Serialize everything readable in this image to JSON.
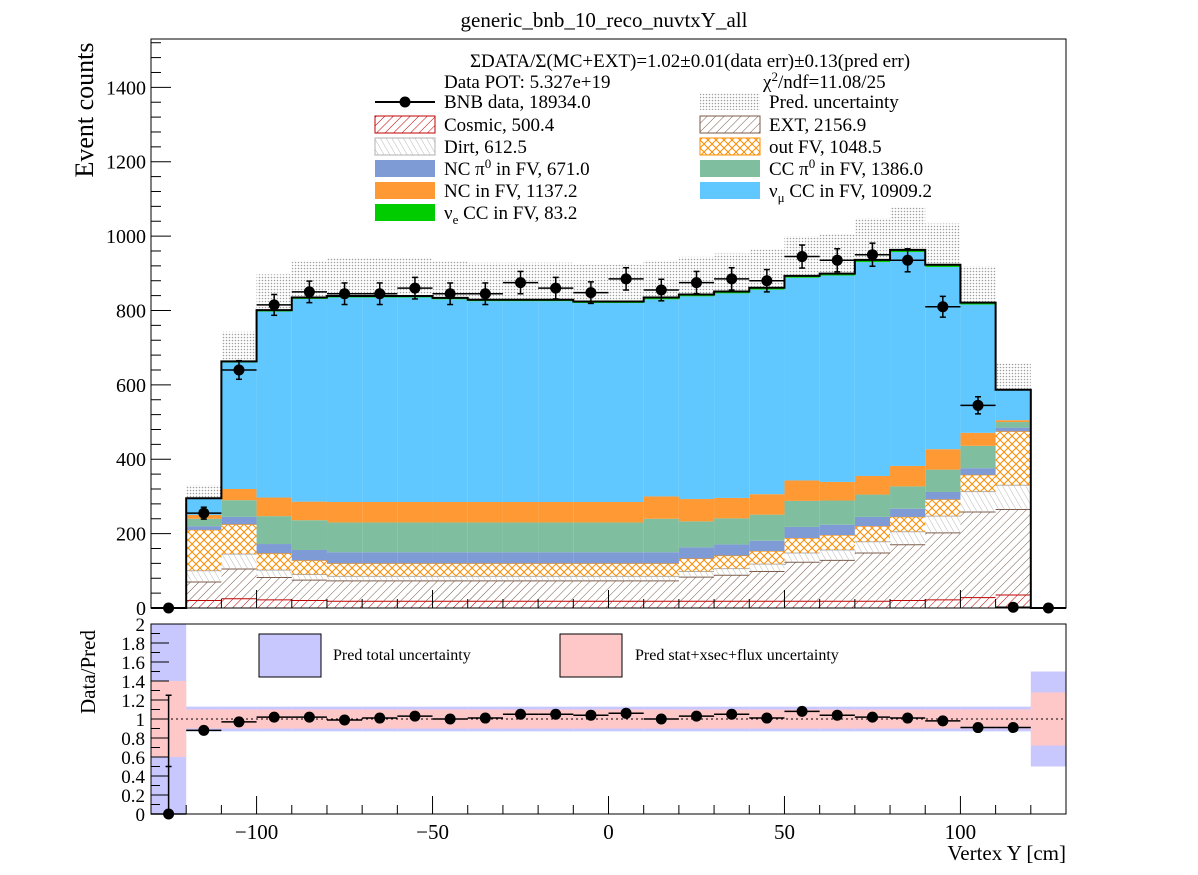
{
  "chart_data": [
    {
      "type": "bar",
      "stacked": true,
      "title": "generic_bnb_10_reco_nuvtxY_all",
      "ylabel": "Event counts",
      "xlim": [
        -130,
        130
      ],
      "ylim": [
        0,
        1530
      ],
      "yticks": [
        0,
        200,
        400,
        600,
        800,
        1000,
        1200,
        1400
      ],
      "bin_width": 10,
      "bin_centers": [
        -125,
        -115,
        -105,
        -95,
        -85,
        -75,
        -65,
        -55,
        -45,
        -35,
        -25,
        -15,
        -5,
        5,
        15,
        25,
        35,
        45,
        55,
        65,
        75,
        85,
        95,
        105,
        115,
        125
      ],
      "header_lines": {
        "ratio": "ΣDATA/Σ(MC+EXT)=1.02±0.01(data err)±0.13(pred err)",
        "pot": "Data POT: 5.327e+19",
        "chi2_prefix": "χ",
        "chi2_sup": "2",
        "chi2_rest": "/ndf=11.08/25"
      },
      "series": [
        {
          "name": "Cosmic, 500.4",
          "color": "#c00000",
          "pattern": "hatch-red",
          "values": [
            0,
            20,
            25,
            22,
            20,
            18,
            18,
            18,
            18,
            18,
            18,
            18,
            18,
            18,
            18,
            18,
            18,
            18,
            18,
            18,
            18,
            20,
            22,
            28,
            35,
            0
          ]
        },
        {
          "name": "EXT, 2156.9",
          "color": "#7a5a48",
          "pattern": "hatch-brown",
          "values": [
            0,
            50,
            80,
            60,
            55,
            55,
            55,
            55,
            55,
            55,
            55,
            55,
            55,
            55,
            55,
            65,
            70,
            80,
            105,
            110,
            130,
            150,
            180,
            230,
            230,
            0
          ]
        },
        {
          "name": "Dirt, 612.5",
          "color": "#b0b0b0",
          "pattern": "hatch-grey",
          "values": [
            0,
            30,
            40,
            20,
            15,
            12,
            12,
            12,
            12,
            12,
            12,
            12,
            12,
            12,
            12,
            15,
            18,
            20,
            25,
            28,
            30,
            35,
            45,
            55,
            65,
            0
          ]
        },
        {
          "name": "out FV, 1048.5",
          "color": "#ff8c00",
          "pattern": "hatch-orange",
          "values": [
            0,
            110,
            80,
            45,
            38,
            35,
            35,
            35,
            35,
            35,
            35,
            35,
            35,
            35,
            35,
            35,
            35,
            35,
            40,
            40,
            42,
            40,
            45,
            45,
            145,
            0
          ]
        },
        {
          "name": "NC π0 in FV,  671.0",
          "color": "#7e9bd6",
          "values": [
            0,
            10,
            20,
            25,
            28,
            30,
            30,
            30,
            30,
            30,
            30,
            30,
            30,
            30,
            30,
            30,
            30,
            28,
            30,
            28,
            25,
            22,
            20,
            18,
            10,
            0
          ]
        },
        {
          "name": "CC π0 in FV, 1386.0",
          "color": "#7fbf9f",
          "values": [
            0,
            20,
            45,
            75,
            80,
            80,
            80,
            80,
            80,
            80,
            80,
            80,
            80,
            80,
            90,
            70,
            70,
            70,
            70,
            65,
            60,
            60,
            60,
            60,
            15,
            0
          ]
        },
        {
          "name": "NC in FV, 1137.2",
          "color": "#ff9933",
          "values": [
            0,
            10,
            30,
            50,
            50,
            55,
            55,
            55,
            55,
            55,
            55,
            55,
            55,
            55,
            60,
            60,
            55,
            55,
            55,
            50,
            50,
            55,
            55,
            35,
            5,
            0
          ]
        },
        {
          "name": "νμ CC in FV, 10909.2",
          "color": "#60c8ff",
          "values": [
            0,
            45,
            340,
            500,
            545,
            550,
            550,
            550,
            545,
            540,
            540,
            540,
            535,
            535,
            530,
            545,
            550,
            550,
            545,
            555,
            575,
            575,
            490,
            345,
            80,
            0
          ]
        },
        {
          "name": "νe CC in FV, 83.2",
          "color": "#00cc00",
          "values": [
            0,
            0,
            3,
            4,
            4,
            4,
            4,
            4,
            4,
            4,
            4,
            4,
            4,
            4,
            5,
            5,
            5,
            5,
            5,
            5,
            6,
            6,
            6,
            5,
            2,
            0
          ]
        }
      ],
      "uncertainty": {
        "name": "Pred. uncertainty",
        "color": "#d8d8d8",
        "up_fraction": 0.12
      },
      "data": {
        "name": "BNB data, 18934.0",
        "color": "#000000",
        "values": [
          0,
          255,
          640,
          815,
          850,
          845,
          845,
          860,
          845,
          845,
          875,
          860,
          848,
          885,
          855,
          875,
          885,
          880,
          945,
          935,
          950,
          935,
          810,
          545,
          2,
          0
        ],
        "errors": [
          1,
          16,
          25,
          28,
          29,
          29,
          29,
          29,
          29,
          29,
          30,
          29,
          29,
          30,
          29,
          30,
          30,
          30,
          31,
          31,
          31,
          31,
          28,
          23,
          1,
          0
        ]
      }
    },
    {
      "type": "scatter",
      "ylabel": "Data/Pred",
      "xlabel": "Vertex Y [cm]",
      "xlim": [
        -130,
        130
      ],
      "ylim": [
        0,
        2
      ],
      "xticks": [
        -100,
        -50,
        0,
        50,
        100
      ],
      "xtick_labels": [
        "−100",
        "−50",
        "0",
        "50",
        "100"
      ],
      "yticks": [
        0,
        0.2,
        0.4,
        0.6,
        0.8,
        1,
        1.2,
        1.4,
        1.6,
        1.8,
        2
      ],
      "ytick_labels": [
        "0",
        "0.2",
        "0.4",
        "0.6",
        "0.8",
        "1",
        "1.2",
        "1.4",
        "1.6",
        "1.8",
        "2"
      ],
      "bands": [
        {
          "name": "Pred total uncertainty",
          "color": "#c8c8ff",
          "half_width": [
            1.0,
            0.13,
            0.13,
            0.13,
            0.13,
            0.13,
            0.13,
            0.13,
            0.13,
            0.13,
            0.13,
            0.13,
            0.13,
            0.13,
            0.13,
            0.13,
            0.13,
            0.13,
            0.13,
            0.13,
            0.13,
            0.13,
            0.13,
            0.13,
            0.13,
            0.5
          ]
        },
        {
          "name": "Pred stat+xsec+flux uncertainty",
          "color": "#ffc8c8",
          "half_width": [
            0.4,
            0.1,
            0.1,
            0.1,
            0.1,
            0.1,
            0.1,
            0.1,
            0.1,
            0.1,
            0.1,
            0.1,
            0.1,
            0.1,
            0.1,
            0.1,
            0.1,
            0.1,
            0.1,
            0.1,
            0.1,
            0.1,
            0.1,
            0.1,
            0.1,
            0.28
          ]
        }
      ],
      "points": {
        "x": [
          -125,
          -115,
          -105,
          -95,
          -85,
          -75,
          -65,
          -55,
          -45,
          -35,
          -25,
          -15,
          -5,
          5,
          15,
          25,
          35,
          45,
          55,
          65,
          75,
          85,
          95,
          105,
          115
        ],
        "y": [
          0,
          0.88,
          0.97,
          1.02,
          1.02,
          0.99,
          1.01,
          1.03,
          1.0,
          1.01,
          1.05,
          1.05,
          1.04,
          1.06,
          1.0,
          1.03,
          1.05,
          1.01,
          1.08,
          1.04,
          1.02,
          1.01,
          0.98,
          0.91,
          0.91
        ],
        "err": [
          1.25,
          0.05,
          0.04,
          0.04,
          0.04,
          0.04,
          0.04,
          0.04,
          0.04,
          0.04,
          0.04,
          0.04,
          0.04,
          0.04,
          0.04,
          0.04,
          0.04,
          0.04,
          0.04,
          0.04,
          0.04,
          0.04,
          0.04,
          0.04,
          0.05
        ]
      },
      "reference_line": 1
    }
  ],
  "legend": {
    "left": [
      {
        "key": "data",
        "label": "BNB data, 18934.0"
      },
      {
        "key": "Cosmic",
        "label": "Cosmic, 500.4"
      },
      {
        "key": "Dirt",
        "label": "Dirt, 612.5"
      },
      {
        "key": "NCpi0",
        "label_main": "NC π",
        "label_sup": "0",
        "label_rest": " in FV,  671.0"
      },
      {
        "key": "NC",
        "label": "NC in FV, 1137.2"
      },
      {
        "key": "nue",
        "label_main": "ν",
        "label_sub": "e",
        "label_rest": " CC in FV, 83.2"
      }
    ],
    "right": [
      {
        "key": "unc",
        "label": "Pred. uncertainty"
      },
      {
        "key": "EXT",
        "label": "EXT, 2156.9"
      },
      {
        "key": "outFV",
        "label": "out FV, 1048.5"
      },
      {
        "key": "CCpi0",
        "label_main": "CC π",
        "label_sup": "0",
        "label_rest": " in FV, 1386.0"
      },
      {
        "key": "numu",
        "label_main": "ν",
        "label_sub": "μ",
        "label_rest": " CC in FV, 10909.2"
      }
    ]
  }
}
